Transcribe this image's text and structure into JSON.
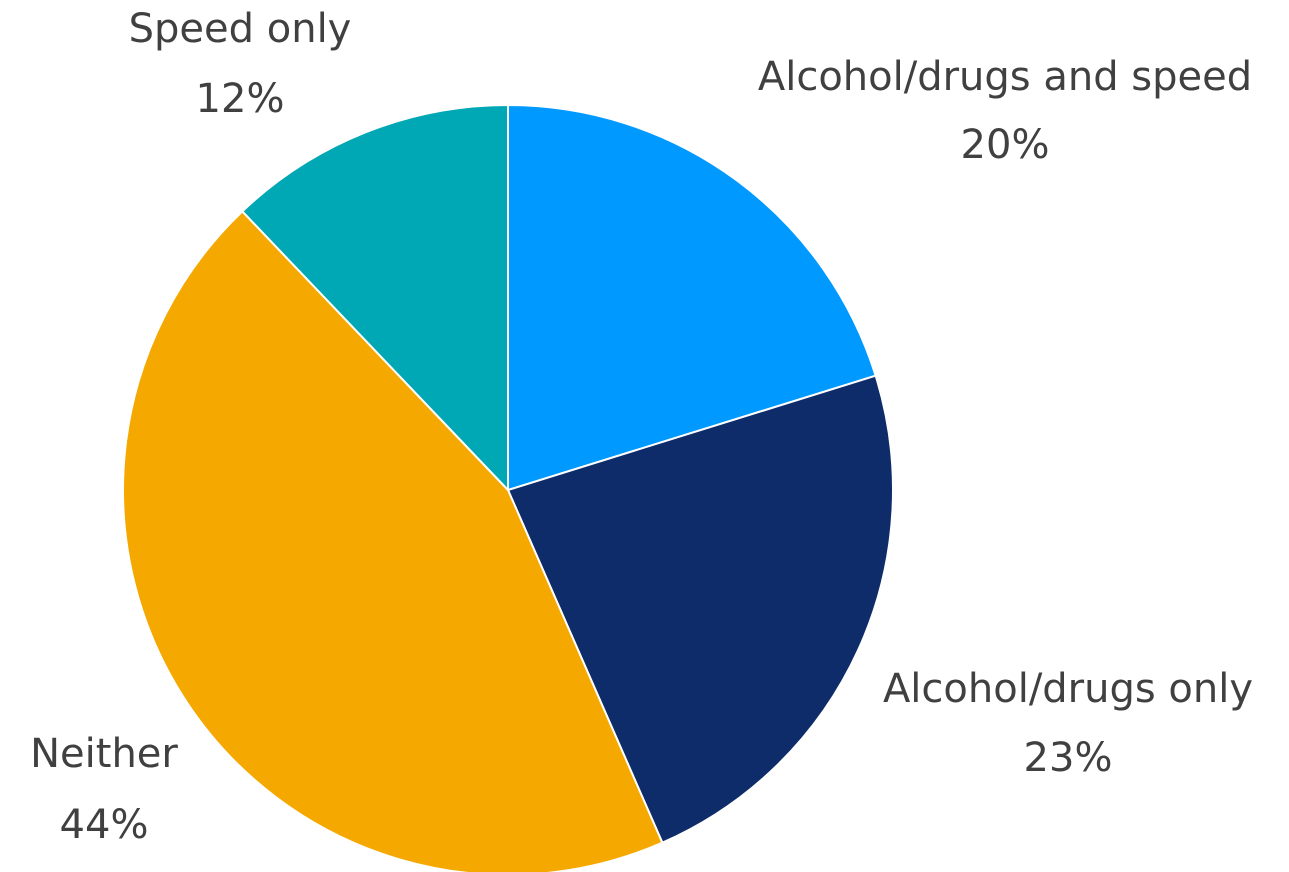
{
  "chart_data": {
    "type": "pie",
    "slices": [
      {
        "label": "Alcohol/drugs and speed",
        "value_label": "20%",
        "value": 20,
        "color": "#0099FF"
      },
      {
        "label": "Alcohol/drugs only",
        "value_label": "23%",
        "value": 23,
        "color": "#0E2C69"
      },
      {
        "label": "Neither",
        "value_label": "44%",
        "value": 44,
        "color": "#F5A800"
      },
      {
        "label": "Speed only",
        "value_label": "12%",
        "value": 12,
        "color": "#00A7B5"
      }
    ]
  }
}
